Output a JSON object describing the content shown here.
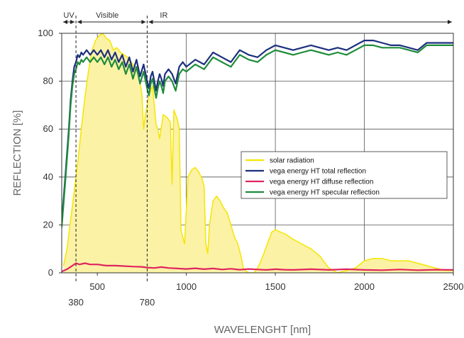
{
  "chart_data": {
    "type": "line",
    "xlabel": "WAVELENGHT [nm]",
    "ylabel": "REFLECTION [%]",
    "xlim": [
      300,
      2500
    ],
    "ylim": [
      0,
      100
    ],
    "x_ticks": [
      500,
      1000,
      1500,
      2000,
      2500
    ],
    "y_ticks": [
      0,
      20,
      40,
      60,
      80,
      100
    ],
    "extra_x_ticks": [
      380,
      780
    ],
    "grid": true,
    "legend_position": "center-right",
    "bands": [
      {
        "label": "UV",
        "from": 300,
        "to": 380
      },
      {
        "label": "Visible",
        "from": 380,
        "to": 780
      },
      {
        "label": "IR",
        "from": 780,
        "to": 2500
      }
    ],
    "series": [
      {
        "name": "solar radiation",
        "color": "#f5e600",
        "fill": "#fbf2a6",
        "x": [
          310,
          330,
          350,
          370,
          390,
          410,
          430,
          450,
          470,
          490,
          510,
          530,
          550,
          570,
          590,
          610,
          630,
          650,
          670,
          690,
          710,
          730,
          750,
          760,
          770,
          790,
          810,
          830,
          840,
          850,
          870,
          890,
          910,
          920,
          930,
          950,
          960,
          970,
          990,
          1010,
          1030,
          1050,
          1070,
          1090,
          1100,
          1110,
          1120,
          1130,
          1150,
          1170,
          1190,
          1210,
          1230,
          1250,
          1270,
          1290,
          1310,
          1320,
          1330,
          1350,
          1380,
          1400,
          1420,
          1450,
          1480,
          1500,
          1530,
          1560,
          1600,
          1650,
          1700,
          1750,
          1800,
          1850,
          1900,
          1950,
          2000,
          2050,
          2100,
          2150,
          2200,
          2250,
          2300,
          2350,
          2400,
          2450,
          2500
        ],
        "values": [
          3,
          10,
          22,
          34,
          46,
          60,
          73,
          84,
          93,
          97,
          99,
          100,
          98,
          97,
          93,
          94,
          92,
          91,
          90,
          88,
          86,
          83,
          75,
          60,
          66,
          74,
          78,
          62,
          60,
          56,
          66,
          65,
          63,
          37,
          68,
          64,
          60,
          18,
          12,
          40,
          43,
          44,
          42,
          39,
          36,
          12,
          8,
          20,
          30,
          32,
          30,
          27,
          25,
          20,
          15,
          12,
          6,
          2,
          1,
          0,
          0,
          2,
          5,
          11,
          17,
          18,
          17,
          16,
          14,
          12,
          10,
          7,
          2,
          0,
          1,
          2,
          5,
          6,
          6,
          5,
          5,
          5,
          4,
          3,
          2,
          1,
          1
        ]
      },
      {
        "name": "vega energy HT total reflection",
        "color": "#1c2f7d",
        "x": [
          300,
          320,
          340,
          350,
          360,
          370,
          380,
          390,
          400,
          410,
          420,
          440,
          460,
          480,
          500,
          520,
          540,
          560,
          580,
          600,
          620,
          640,
          660,
          680,
          700,
          720,
          740,
          760,
          780,
          790,
          800,
          810,
          820,
          830,
          840,
          850,
          860,
          870,
          880,
          900,
          920,
          940,
          960,
          980,
          1000,
          1050,
          1100,
          1150,
          1200,
          1250,
          1300,
          1350,
          1400,
          1450,
          1500,
          1550,
          1600,
          1650,
          1700,
          1750,
          1800,
          1850,
          1900,
          1950,
          2000,
          2050,
          2100,
          2150,
          2200,
          2250,
          2300,
          2350,
          2400,
          2450,
          2500
        ],
        "values": [
          21,
          40,
          60,
          72,
          80,
          86,
          88,
          91,
          90,
          92,
          91,
          93,
          91,
          93,
          91,
          93,
          90,
          93,
          89,
          92,
          88,
          91,
          86,
          90,
          84,
          89,
          82,
          87,
          80,
          77,
          82,
          84,
          80,
          76,
          80,
          83,
          81,
          78,
          83,
          85,
          83,
          79,
          86,
          88,
          86,
          89,
          87,
          92,
          90,
          88,
          93,
          91,
          90,
          93,
          95,
          94,
          93,
          94,
          95,
          94,
          93,
          94,
          93,
          95,
          97,
          97,
          96,
          95,
          95,
          94,
          93,
          96,
          96,
          96,
          96
        ]
      },
      {
        "name": "vega energy HT diffuse reflection",
        "color": "#e0245e",
        "x": [
          300,
          330,
          360,
          380,
          400,
          430,
          460,
          500,
          550,
          600,
          650,
          700,
          750,
          780,
          820,
          860,
          900,
          950,
          1000,
          1050,
          1100,
          1150,
          1200,
          1250,
          1300,
          1350,
          1400,
          1450,
          1500,
          1550,
          1600,
          1700,
          1800,
          1900,
          2000,
          2100,
          2200,
          2300,
          2400,
          2500
        ],
        "values": [
          0.5,
          1.5,
          3,
          4,
          3.5,
          4,
          3.5,
          3.5,
          3,
          3,
          2.8,
          2.6,
          2.5,
          2.2,
          2,
          2.4,
          2,
          1.8,
          1.6,
          1.9,
          1.5,
          1.8,
          1.4,
          1.7,
          1.3,
          1.6,
          1.4,
          1.2,
          1.5,
          1.3,
          1.2,
          1.5,
          1.2,
          1.5,
          1.2,
          1.1,
          1.4,
          1.1,
          1.3,
          1.2
        ]
      },
      {
        "name": "vega energy HT specular reflection",
        "color": "#1f8c3a",
        "x": [
          300,
          320,
          340,
          350,
          360,
          370,
          380,
          390,
          400,
          410,
          420,
          440,
          460,
          480,
          500,
          520,
          540,
          560,
          580,
          600,
          620,
          640,
          660,
          680,
          700,
          720,
          740,
          760,
          780,
          790,
          800,
          810,
          820,
          830,
          840,
          850,
          860,
          870,
          880,
          900,
          920,
          940,
          960,
          980,
          1000,
          1050,
          1100,
          1150,
          1200,
          1250,
          1300,
          1350,
          1400,
          1450,
          1500,
          1550,
          1600,
          1650,
          1700,
          1750,
          1800,
          1850,
          1900,
          1950,
          2000,
          2050,
          2100,
          2150,
          2200,
          2250,
          2300,
          2350,
          2400,
          2450,
          2500
        ],
        "values": [
          19,
          38,
          58,
          70,
          78,
          83,
          85,
          88,
          87,
          89,
          88,
          90,
          88,
          90,
          88,
          90,
          87,
          90,
          86,
          89,
          85,
          88,
          83,
          87,
          81,
          86,
          79,
          84,
          77,
          74,
          79,
          81,
          77,
          73,
          77,
          80,
          78,
          75,
          80,
          82,
          80,
          76,
          83,
          85,
          84,
          87,
          85,
          90,
          88,
          86,
          91,
          89,
          88,
          91,
          93,
          92,
          91,
          92,
          93,
          92,
          91,
          92,
          91,
          93,
          95,
          95,
          94,
          94,
          94,
          93,
          92,
          95,
          95,
          95,
          95
        ]
      }
    ]
  }
}
